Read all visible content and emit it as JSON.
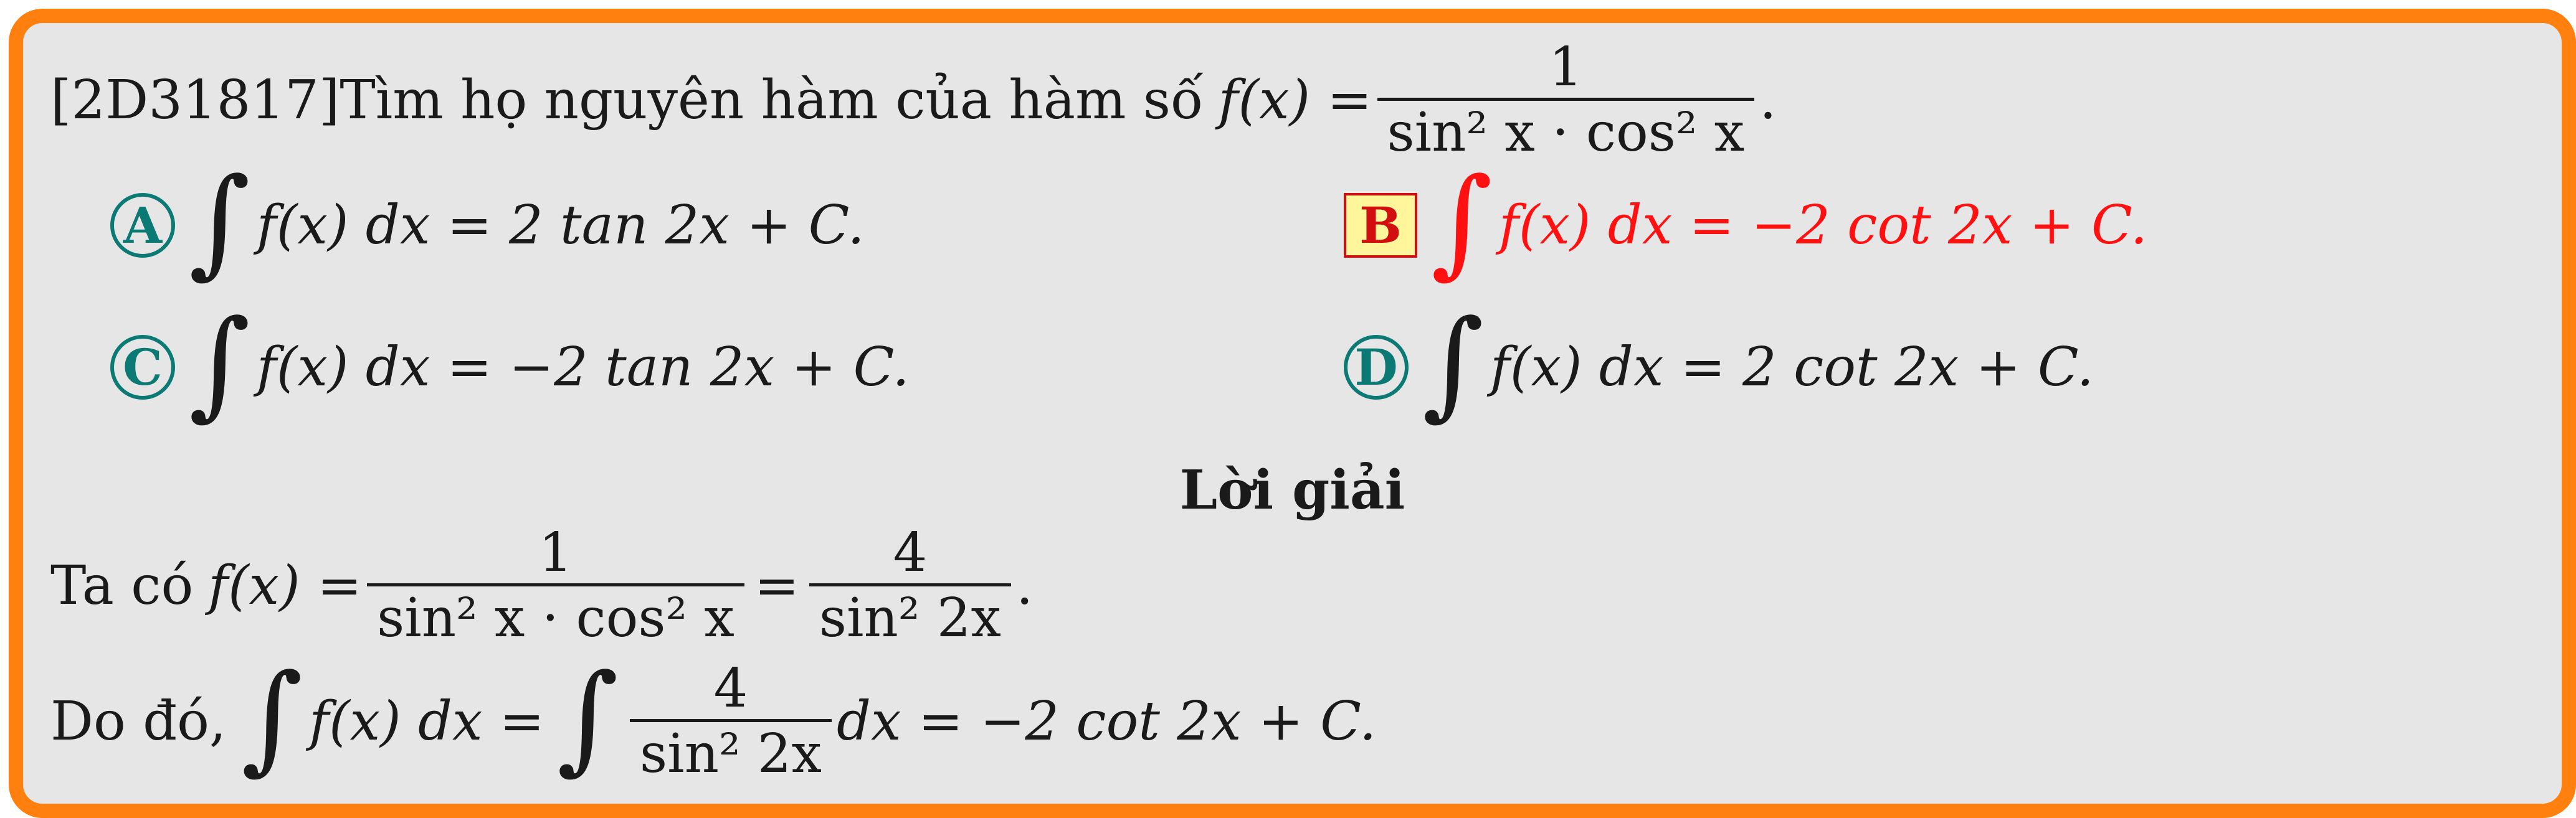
{
  "question": {
    "id": "[2D31817]",
    "text": "Tìm họ nguyên hàm của hàm số",
    "func": "f(x) =",
    "frac_num": "1",
    "frac_den": "sin² x · cos² x",
    "end": "."
  },
  "options": [
    {
      "label": "A",
      "expr": "f(x) dx = 2 tan 2x + C."
    },
    {
      "label": "B",
      "expr": "f(x) dx = −2 cot 2x + C."
    },
    {
      "label": "C",
      "expr": "f(x) dx = −2 tan 2x + C."
    },
    {
      "label": "D",
      "expr": "f(x) dx = 2 cot 2x + C."
    }
  ],
  "solution": {
    "heading": "Lời giải",
    "line1_prefix": "Ta có",
    "line1_func": "f(x) =",
    "line1_frac1_num": "1",
    "line1_frac1_den": "sin² x · cos² x",
    "line1_eq": "=",
    "line1_frac2_num": "4",
    "line1_frac2_den": "sin² 2x",
    "line1_end": ".",
    "line2_prefix": "Do đó,",
    "line2_expr1": "f(x) dx =",
    "line2_frac_num": "4",
    "line2_frac_den": "sin² 2x",
    "line2_expr2": "dx = −2 cot 2x + C."
  },
  "colors": {
    "border": "#ff7f0f",
    "background": "#e6e6e6",
    "option_label": "#0b7a75",
    "correct": "#ff1111",
    "correct_box_fill": "#fff59a"
  }
}
